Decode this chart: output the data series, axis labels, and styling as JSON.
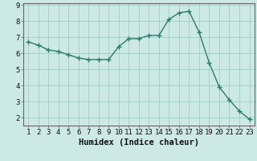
{
  "x": [
    1,
    2,
    3,
    4,
    5,
    6,
    7,
    8,
    9,
    10,
    11,
    12,
    13,
    14,
    15,
    16,
    17,
    18,
    19,
    20,
    21,
    22,
    23
  ],
  "y": [
    6.7,
    6.5,
    6.2,
    6.1,
    5.9,
    5.7,
    5.6,
    5.6,
    5.6,
    6.4,
    6.9,
    6.9,
    7.1,
    7.1,
    8.1,
    8.5,
    8.6,
    7.3,
    5.4,
    3.9,
    3.1,
    2.4,
    1.9
  ],
  "line_color": "#2d7a6e",
  "marker": "+",
  "marker_size": 4,
  "marker_color": "#2d7a6e",
  "bg_color": "#cce9e5",
  "grid_color": "#aacfcb",
  "axis_color": "#666666",
  "xlabel": "Humidex (Indice chaleur)",
  "ylim_min": 1.5,
  "ylim_max": 9.1,
  "xlim_min": 0.5,
  "xlim_max": 23.5,
  "yticks": [
    2,
    3,
    4,
    5,
    6,
    7,
    8,
    9
  ],
  "xticks": [
    1,
    2,
    3,
    4,
    5,
    6,
    7,
    8,
    9,
    10,
    11,
    12,
    13,
    14,
    15,
    16,
    17,
    18,
    19,
    20,
    21,
    22,
    23
  ],
  "tick_font_size": 6.5,
  "xlabel_fontsize": 7.5,
  "line_width": 1.0
}
